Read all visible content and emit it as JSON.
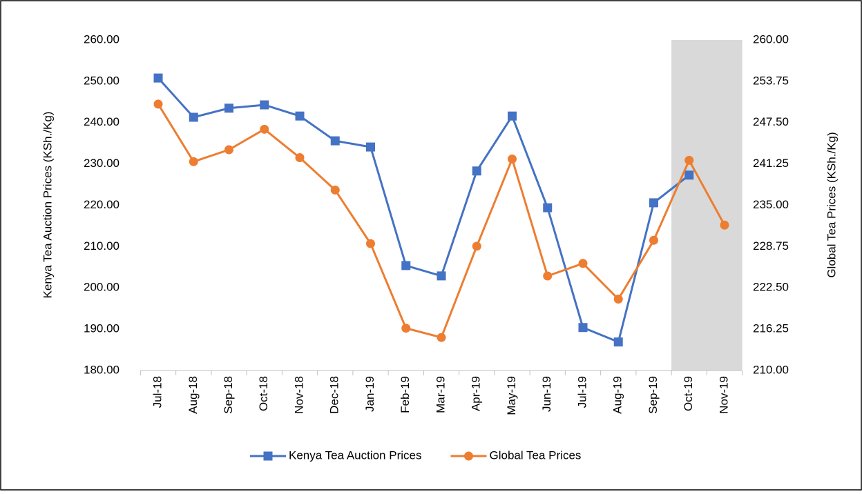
{
  "chart_data": {
    "type": "line",
    "categories": [
      "Jul-18",
      "Aug-18",
      "Sep-18",
      "Oct-18",
      "Nov-18",
      "Dec-18",
      "Jan-19",
      "Feb-19",
      "Mar-19",
      "Apr-19",
      "May-19",
      "Jun-19",
      "Jul-19",
      "Aug-19",
      "Sep-19",
      "Oct-19",
      "Nov-19"
    ],
    "series": [
      {
        "name": "Kenya Tea Auction Prices",
        "color": "#4472c4",
        "marker": "square",
        "values": [
          250.8,
          241.3,
          243.5,
          244.3,
          241.6,
          235.6,
          234.1,
          205.4,
          202.9,
          228.3,
          241.6,
          219.4,
          190.4,
          186.9,
          220.6,
          227.3,
          null
        ]
      },
      {
        "name": "Global Tea Prices",
        "color": "#ed7d31",
        "marker": "circle",
        "axis": "y2",
        "values": [
          250.3,
          241.6,
          243.4,
          246.5,
          242.2,
          237.3,
          229.2,
          216.4,
          215.0,
          228.8,
          242.0,
          224.3,
          226.2,
          220.8,
          229.7,
          241.8,
          232.0
        ]
      }
    ],
    "ylabel": "Kenya Tea Auction Prices (KSh./Kg)",
    "y2label": "Global Tea Prices (KSh./Kg)",
    "ylim": [
      180,
      260
    ],
    "yticks": [
      {
        "value": 180,
        "label": "180.00"
      },
      {
        "value": 190,
        "label": "190.00"
      },
      {
        "value": 200,
        "label": "200.00"
      },
      {
        "value": 210,
        "label": "210.00"
      },
      {
        "value": 220,
        "label": "220.00"
      },
      {
        "value": 230,
        "label": "230.00"
      },
      {
        "value": 240,
        "label": "240.00"
      },
      {
        "value": 250,
        "label": "250.00"
      },
      {
        "value": 260,
        "label": "260.00"
      }
    ],
    "y2lim": [
      210,
      260
    ],
    "y2ticks": [
      {
        "value": 210,
        "label": "210.00"
      },
      {
        "value": 216.25,
        "label": "216.25"
      },
      {
        "value": 222.5,
        "label": "222.50"
      },
      {
        "value": 228.75,
        "label": "228.75"
      },
      {
        "value": 235,
        "label": "235.00"
      },
      {
        "value": 241.25,
        "label": "241.25"
      },
      {
        "value": 247.5,
        "label": "247.50"
      },
      {
        "value": 253.75,
        "label": "253.75"
      },
      {
        "value": 260,
        "label": "260.00"
      }
    ],
    "highlight": {
      "start": "Oct-19",
      "color": "#d9d9d9"
    },
    "grid": false,
    "legend": "bottom"
  }
}
